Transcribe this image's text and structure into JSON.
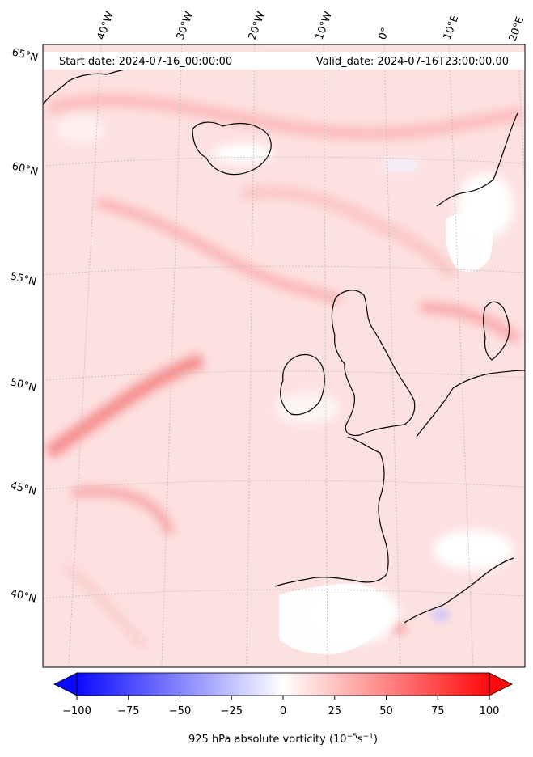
{
  "header": {
    "start_text": "Start date: 2024-07-16_00:00:00",
    "valid_text": "Valid_date: 2024-07-16T23:00:00.00"
  },
  "map": {
    "field": "925 hPa absolute vorticity",
    "projection": "conic",
    "region": "North Atlantic and Western Europe",
    "lon_labels": [
      "40°W",
      "30°W",
      "20°W",
      "10°W",
      "0°",
      "10°E",
      "20°E"
    ],
    "lat_labels": [
      "65°N",
      "60°N",
      "55°N",
      "50°N",
      "45°N",
      "40°N"
    ],
    "coastline_color": "#000000",
    "gridline_color": "#bbbbbb"
  },
  "colorbar": {
    "cmap": "bwr",
    "min": -100,
    "max": 100,
    "extend": "both",
    "ticks": [
      "−100",
      "−75",
      "−50",
      "−25",
      "0",
      "25",
      "50",
      "75",
      "100"
    ],
    "label_text": "925 hPa absolute vorticity",
    "label_unit": "(10",
    "unit_exp1": "−5",
    "unit_s": "s",
    "unit_exp2": "−1",
    "unit_close": ")"
  }
}
